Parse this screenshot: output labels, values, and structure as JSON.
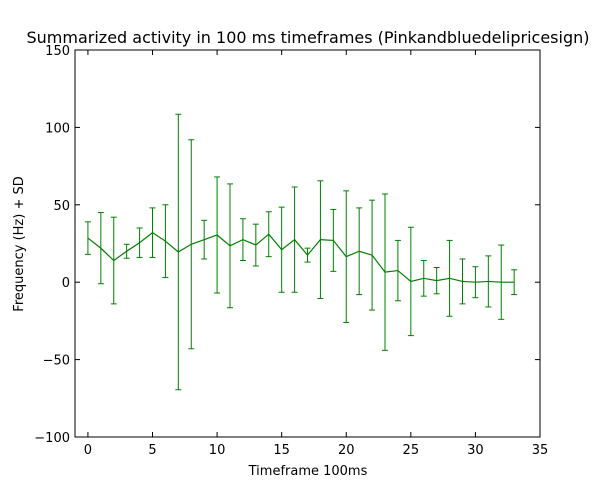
{
  "chart_data": {
    "type": "line",
    "title": "Summarized activity in 100 ms timeframes (Pinkandbluedelipricesign)",
    "xlabel": "Timeframe 100ms",
    "ylabel": "Frequency (Hz) + SD",
    "xlim": [
      -1,
      35
    ],
    "ylim": [
      -100,
      150
    ],
    "xticks": [
      0,
      5,
      10,
      15,
      20,
      25,
      30,
      35
    ],
    "yticks": [
      -100,
      -50,
      0,
      50,
      100,
      150
    ],
    "grid": false,
    "legend": "none",
    "series": [
      {
        "color": "#008000",
        "x": [
          0,
          1,
          2,
          3,
          4,
          5,
          6,
          7,
          8,
          9,
          10,
          11,
          12,
          13,
          14,
          15,
          16,
          17,
          18,
          19,
          20,
          21,
          22,
          23,
          24,
          25,
          26,
          27,
          28,
          29,
          30,
          31,
          32,
          33
        ],
        "y": [
          28.5,
          22,
          14,
          20,
          25.5,
          32,
          26.5,
          19.5,
          24.5,
          27.5,
          30.5,
          23.5,
          27.5,
          24,
          31,
          21,
          27.5,
          17.5,
          27.5,
          27,
          16.5,
          20,
          17.5,
          6.5,
          7.5,
          0.5,
          2.5,
          1,
          2.5,
          0.5,
          0,
          0.5,
          0,
          0
        ],
        "yerr": [
          10.5,
          23,
          28,
          4.5,
          9.5,
          16,
          23.5,
          89,
          67.5,
          12.5,
          37.5,
          40,
          13.5,
          13.5,
          14.5,
          27.5,
          34,
          4.5,
          38,
          20,
          42.5,
          28,
          35.5,
          50.5,
          19.5,
          35,
          11.5,
          8.5,
          24.5,
          14.5,
          10,
          16.5,
          24,
          8
        ]
      }
    ]
  }
}
